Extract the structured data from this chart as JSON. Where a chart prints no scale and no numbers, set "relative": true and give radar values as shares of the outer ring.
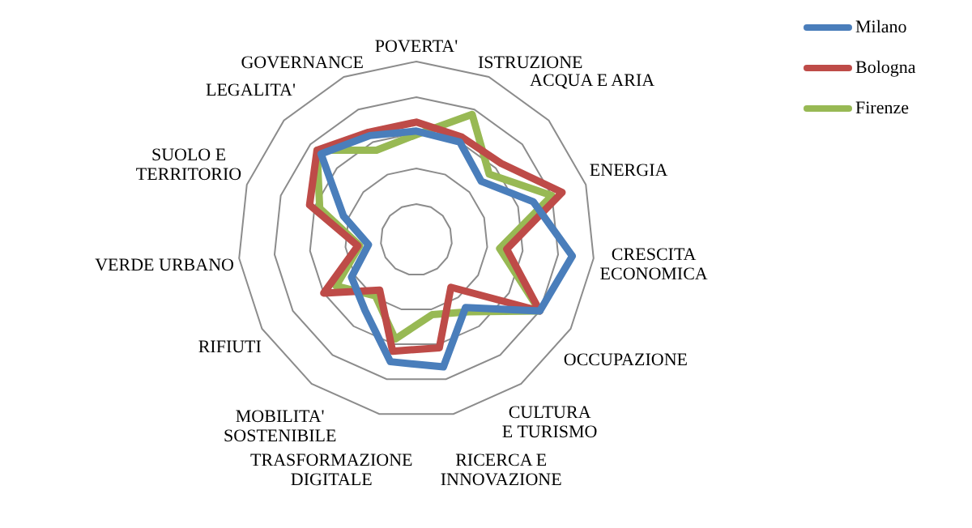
{
  "chart_data": {
    "type": "radar",
    "relative": true,
    "legend": "top right",
    "marker": "none",
    "grid": true,
    "categories": [
      "POVERTA'",
      "ISTRUZIONE",
      "ACQUA E ARIA",
      "ENERGIA",
      "CRESCITA ECONOMICA",
      "OCCUPAZIONE",
      "CULTURA E TURISMO",
      "RICERCA E INNOVAZIONE",
      "TRASFORMAZIONE DIGITALE",
      "MOBILITA' SOSTENIBILE",
      "RIFIUTI",
      "VERDE URBANO",
      "SUOLO E TERRITORIO",
      "LEGALITA'",
      "GOVERNANCE"
    ],
    "series": [
      {
        "name": "Milano",
        "color": "#4a7ebb",
        "values": [
          0.61,
          0.6,
          0.49,
          0.69,
          0.88,
          0.8,
          0.47,
          0.73,
          0.7,
          0.49,
          0.42,
          0.27,
          0.43,
          0.72,
          0.64
        ]
      },
      {
        "name": "Bologna",
        "color": "#be4b48",
        "values": [
          0.66,
          0.63,
          0.64,
          0.86,
          0.51,
          0.8,
          0.33,
          0.62,
          0.64,
          0.35,
          0.6,
          0.33,
          0.63,
          0.75,
          0.66
        ]
      },
      {
        "name": "Firenze",
        "color": "#98b954",
        "values": [
          0.59,
          0.77,
          0.55,
          0.8,
          0.47,
          0.8,
          0.5,
          0.43,
          0.57,
          0.39,
          0.52,
          0.32,
          0.57,
          0.75,
          0.55
        ]
      }
    ]
  }
}
